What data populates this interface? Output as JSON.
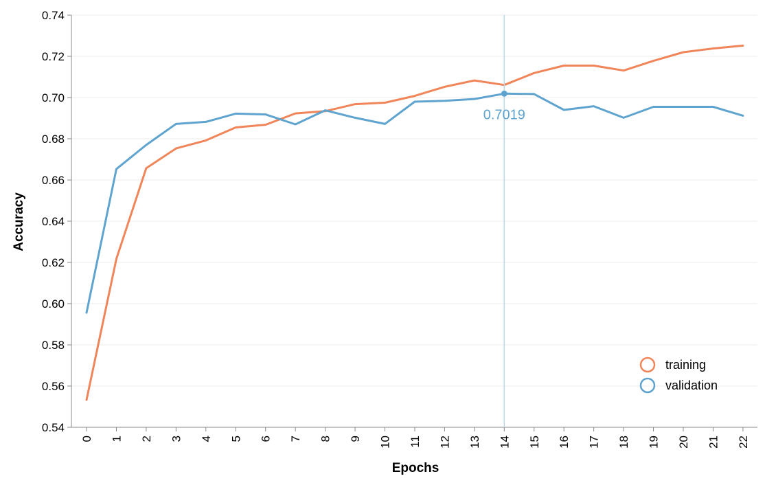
{
  "chart_data": {
    "type": "line",
    "title": "",
    "xlabel": "Epochs",
    "ylabel": "Accuracy",
    "x": [
      0,
      1,
      2,
      3,
      4,
      5,
      6,
      7,
      8,
      9,
      10,
      11,
      12,
      13,
      14,
      15,
      16,
      17,
      18,
      19,
      20,
      21,
      22
    ],
    "xticks": [
      "0",
      "1",
      "2",
      "3",
      "4",
      "5",
      "6",
      "7",
      "8",
      "9",
      "10",
      "11",
      "12",
      "13",
      "14",
      "15",
      "16",
      "17",
      "18",
      "19",
      "20",
      "21",
      "22"
    ],
    "yticks": [
      "0.54",
      "0.56",
      "0.58",
      "0.60",
      "0.62",
      "0.64",
      "0.66",
      "0.68",
      "0.70",
      "0.72",
      "0.74"
    ],
    "ylim": [
      0.54,
      0.74
    ],
    "grid": true,
    "legend_position": "bottom-right",
    "series": [
      {
        "name": "training",
        "color": "#f0855a",
        "values": [
          0.5533,
          0.6217,
          0.6657,
          0.6753,
          0.6792,
          0.6855,
          0.6868,
          0.6923,
          0.6934,
          0.6968,
          0.6975,
          0.7008,
          0.7052,
          0.7083,
          0.7061,
          0.7119,
          0.7155,
          0.7155,
          0.7131,
          0.7178,
          0.722,
          0.7238,
          0.7252
        ]
      },
      {
        "name": "validation",
        "color": "#5fa3cf",
        "values": [
          0.5956,
          0.6653,
          0.677,
          0.6872,
          0.6882,
          0.6922,
          0.6918,
          0.687,
          0.6938,
          0.6902,
          0.6872,
          0.698,
          0.6984,
          0.6993,
          0.7019,
          0.7017,
          0.694,
          0.6958,
          0.6902,
          0.6955,
          0.6955,
          0.6955,
          0.6912
        ]
      }
    ],
    "annotation": {
      "series": "validation",
      "x": 14,
      "value": 0.7019,
      "text": "0.7019",
      "color": "#5fa3cf"
    }
  }
}
